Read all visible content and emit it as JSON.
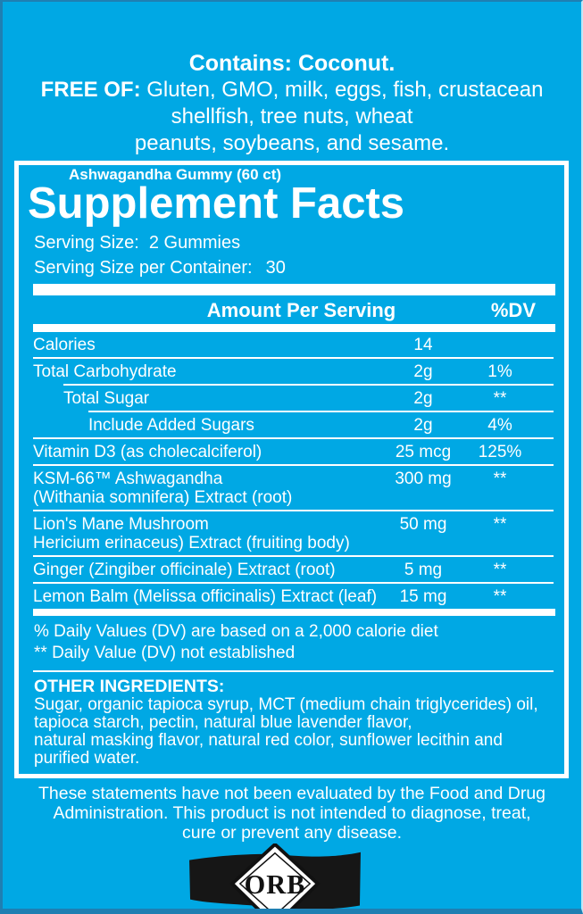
{
  "colors": {
    "background": "#00A8E4",
    "edge": "#1F7FB2",
    "text": "#FFFFFF",
    "panel_border": "#FFFFFF",
    "logo_banner": "#161616",
    "logo_text": "#111111"
  },
  "allergen": {
    "contains": "Contains: Coconut.",
    "free_of_label": "FREE OF:",
    "free_of_items": " Gluten, GMO, milk, eggs, fish, crustacean",
    "free_of_line2": "shellfish, tree nuts, wheat",
    "free_of_line3": "peanuts, soybeans, and sesame."
  },
  "panel": {
    "product": "Ashwagandha Gummy (60 ct)",
    "title": "Supplement Facts",
    "serving_size_label": "Serving Size:",
    "serving_size_value": "2 Gummies",
    "servings_per_container_label": "Serving Size per Container:",
    "servings_per_container_value": "30"
  },
  "supplement_table": {
    "header_amount": "Amount Per Serving",
    "header_dv": "%DV",
    "rows": [
      {
        "name": "Calories",
        "amount": "14",
        "dv": "",
        "indent": 0
      },
      {
        "name": "Total Carbohydrate",
        "amount": "2g",
        "dv": "1%",
        "indent": 0
      },
      {
        "name": "Total Sugar",
        "amount": "2g",
        "dv": "**",
        "indent": 1
      },
      {
        "name": "Include Added Sugars",
        "amount": "2g",
        "dv": "4%",
        "indent": 2
      },
      {
        "name": "Vitamin D3 (as cholecalciferol)",
        "amount": "25 mcg",
        "dv": "125%",
        "indent": 0
      },
      {
        "name": "KSM-66™ Ashwagandha",
        "name_line2": "(Withania somnifera) Extract (root)",
        "amount": "300 mg",
        "dv": "**",
        "indent": 0
      },
      {
        "name": "Lion's Mane Mushroom",
        "name_line2": "Hericium erinaceus) Extract (fruiting body)",
        "amount": "50 mg",
        "dv": "**",
        "indent": 0
      },
      {
        "name": "Ginger (Zingiber officinale) Extract (root)",
        "amount": "5 mg",
        "dv": "**",
        "indent": 0
      },
      {
        "name": "Lemon Balm (Melissa officinalis) Extract (leaf)",
        "amount": "15 mg",
        "dv": "**",
        "indent": 0
      }
    ],
    "footnote1": "% Daily Values (DV) are based on a 2,000 calorie diet",
    "footnote2": "** Daily Value (DV) not established"
  },
  "other_ingredients": {
    "label": "OTHER INGREDIENTS:",
    "lines": [
      "Sugar, organic tapioca syrup, MCT (medium chain triglycerides) oil,",
      "tapioca starch, pectin, natural blue lavender flavor,",
      "natural masking flavor, natural red color, sunflower lecithin and",
      "purified water."
    ]
  },
  "disclaimer_lines": [
    "These statements have not been evaluated by the Food and Drug",
    "Administration. This product is not intended to diagnose, treat,",
    "cure or prevent any disease."
  ],
  "logo": {
    "text": "ORB"
  }
}
